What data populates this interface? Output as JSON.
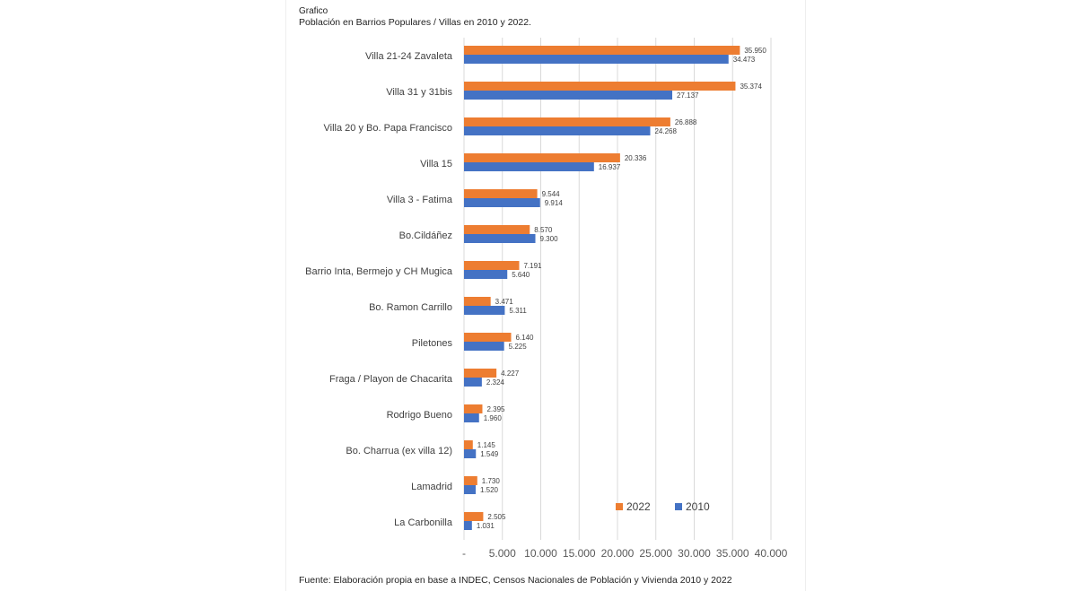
{
  "heading": {
    "label": "Grafico",
    "title": "Población en Barrios Populares / Villas en 2010 y 2022."
  },
  "source": "Fuente: Elaboración propia en base a INDEC, Censos Nacionales de Población y Vivienda 2010 y 2022",
  "chart_data": {
    "type": "bar",
    "orientation": "horizontal",
    "title": "Población en Barrios Populares / Villas en 2010 y 2022.",
    "categories": [
      "Villa 21-24 Zavaleta",
      "Villa 31 y 31bis",
      "Villa 20 y Bo. Papa Francisco",
      "Villa 15",
      "Villa 3 - Fatima",
      "Bo.Cildáñez",
      "Barrio Inta, Bermejo y CH Mugica",
      "Bo. Ramon Carrillo",
      "Piletones",
      "Fraga / Playon de Chacarita",
      "Rodrigo Bueno",
      "Bo. Charrua (ex villa 12)",
      "Lamadrid",
      "La Carbonilla"
    ],
    "series": [
      {
        "name": "2022",
        "color": "#ED7D31",
        "values": [
          35950,
          35374,
          26888,
          20336,
          9544,
          8570,
          7191,
          3471,
          6140,
          4227,
          2395,
          1145,
          1730,
          2505
        ],
        "labels": [
          "35.950",
          "35.374",
          "26.888",
          "20.336",
          "9.544",
          "8.570",
          "7.191",
          "3.471",
          "6.140",
          "4.227",
          "2.395",
          "1.145",
          "1.730",
          "2.505"
        ]
      },
      {
        "name": "2010",
        "color": "#4472C4",
        "values": [
          34473,
          27137,
          24268,
          16937,
          9914,
          9300,
          5640,
          5311,
          5225,
          2324,
          1960,
          1549,
          1520,
          1031
        ],
        "labels": [
          "34.473",
          "27.137",
          "24.268",
          "16.937",
          "9.914",
          "9.300",
          "5.640",
          "5.311",
          "5.225",
          "2.324",
          "1.960",
          "1.549",
          "1.520",
          "1.031"
        ]
      }
    ],
    "xlim": [
      0,
      40000
    ],
    "xticks": [
      0,
      5000,
      10000,
      15000,
      20000,
      25000,
      30000,
      35000,
      40000
    ],
    "xtick_labels": [
      "-",
      "5.000",
      "10.000",
      "15.000",
      "20.000",
      "25.000",
      "30.000",
      "35.000",
      "40.000"
    ],
    "grid": "vertical",
    "legend": "bottom-right"
  }
}
